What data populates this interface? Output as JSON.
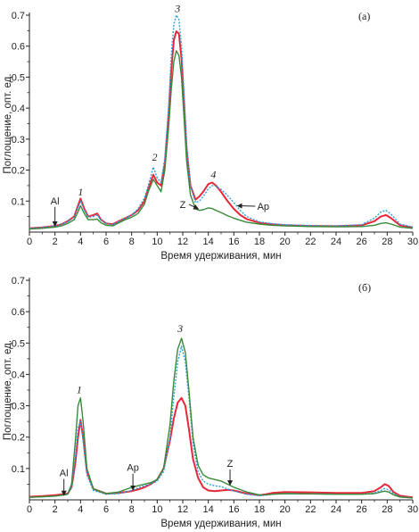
{
  "chart_data": [
    {
      "type": "line",
      "panel_label": "(а)",
      "xlabel": "Время удерживания, мин",
      "ylabel": "Поглощение, опт. ед.",
      "xlim": [
        0,
        30
      ],
      "ylim": [
        0,
        0.7
      ],
      "xticks": [
        "0",
        "2",
        "4",
        "6",
        "8",
        "10",
        "12",
        "14",
        "16",
        "18",
        "20",
        "22",
        "24",
        "26",
        "28",
        "30"
      ],
      "yticks": [
        "0.1",
        "0.2",
        "0.3",
        "0.4",
        "0.5",
        "0.6",
        "0.7"
      ],
      "peak_labels": [
        {
          "text": "1",
          "x": 4.0,
          "y": 0.118
        },
        {
          "text": "2",
          "x": 9.8,
          "y": 0.23
        },
        {
          "text": "3",
          "x": 11.6,
          "y": 0.71
        },
        {
          "text": "4",
          "x": 14.4,
          "y": 0.175
        }
      ],
      "annotations": [
        {
          "text": "Al",
          "x": 2.0,
          "y": 0.02,
          "tx": 2.0,
          "ty": 0.09
        },
        {
          "text": "Z",
          "x": 13.2,
          "y": 0.075,
          "tx": 12.0,
          "ty": 0.078
        },
        {
          "text": "Ap",
          "x": 16.3,
          "y": 0.085,
          "tx": 18.3,
          "ty": 0.072
        }
      ],
      "series": [
        {
          "color": "#e8283a",
          "dash": "",
          "width": 2,
          "x": [
            0,
            1,
            2,
            2.5,
            3,
            3.5,
            3.8,
            4,
            4.3,
            4.6,
            5,
            5.3,
            5.6,
            6,
            6.5,
            7,
            7.5,
            8,
            8.5,
            9,
            9.3,
            9.7,
            10,
            10.3,
            10.6,
            10.9,
            11.1,
            11.3,
            11.5,
            11.7,
            11.9,
            12.1,
            12.3,
            12.6,
            13,
            13.3,
            13.6,
            14,
            14.3,
            14.6,
            15,
            15.5,
            16,
            16.5,
            17,
            18,
            19,
            20,
            22,
            24,
            26,
            27,
            27.5,
            27.9,
            28.3,
            29,
            30
          ],
          "y": [
            0.012,
            0.015,
            0.02,
            0.025,
            0.035,
            0.05,
            0.085,
            0.108,
            0.075,
            0.05,
            0.055,
            0.06,
            0.04,
            0.028,
            0.025,
            0.035,
            0.045,
            0.055,
            0.07,
            0.1,
            0.14,
            0.185,
            0.16,
            0.15,
            0.22,
            0.38,
            0.52,
            0.62,
            0.648,
            0.64,
            0.56,
            0.42,
            0.27,
            0.15,
            0.105,
            0.115,
            0.13,
            0.155,
            0.16,
            0.15,
            0.13,
            0.1,
            0.075,
            0.055,
            0.042,
            0.03,
            0.025,
            0.022,
            0.02,
            0.019,
            0.022,
            0.035,
            0.05,
            0.055,
            0.045,
            0.022,
            0.015
          ]
        },
        {
          "color": "#2a9fe0",
          "dash": "2,1.6",
          "width": 1.4,
          "x": [
            0,
            1,
            2,
            2.5,
            3,
            3.5,
            3.8,
            4,
            4.3,
            4.6,
            5,
            5.3,
            5.6,
            6,
            6.5,
            7,
            7.5,
            8,
            8.5,
            9,
            9.3,
            9.7,
            10,
            10.3,
            10.6,
            10.9,
            11.1,
            11.3,
            11.5,
            11.7,
            11.9,
            12.1,
            12.3,
            12.6,
            13,
            13.3,
            13.6,
            14,
            14.3,
            14.6,
            15,
            15.5,
            16,
            16.5,
            17,
            18,
            19,
            20,
            22,
            24,
            26,
            27,
            27.5,
            27.9,
            28.3,
            29,
            30
          ],
          "y": [
            0.012,
            0.015,
            0.02,
            0.025,
            0.033,
            0.048,
            0.078,
            0.1,
            0.072,
            0.048,
            0.05,
            0.055,
            0.038,
            0.027,
            0.024,
            0.034,
            0.044,
            0.055,
            0.075,
            0.11,
            0.15,
            0.21,
            0.175,
            0.16,
            0.24,
            0.41,
            0.57,
            0.67,
            0.7,
            0.685,
            0.6,
            0.45,
            0.28,
            0.15,
            0.095,
            0.1,
            0.115,
            0.14,
            0.15,
            0.148,
            0.138,
            0.118,
            0.095,
            0.07,
            0.05,
            0.033,
            0.027,
            0.024,
            0.021,
            0.02,
            0.024,
            0.045,
            0.065,
            0.07,
            0.058,
            0.026,
            0.016
          ]
        },
        {
          "color": "#3a8a3a",
          "dash": "",
          "width": 1.4,
          "x": [
            0,
            1,
            2,
            2.5,
            3,
            3.5,
            3.8,
            4,
            4.3,
            4.6,
            5,
            5.3,
            5.6,
            6,
            6.5,
            7,
            7.5,
            8,
            8.5,
            9,
            9.3,
            9.7,
            10,
            10.3,
            10.6,
            10.9,
            11.1,
            11.3,
            11.5,
            11.7,
            11.9,
            12.1,
            12.3,
            12.6,
            13,
            13.3,
            13.6,
            14,
            14.3,
            14.6,
            15,
            15.5,
            16,
            16.5,
            17,
            18,
            19,
            20,
            22,
            24,
            26,
            27,
            27.5,
            27.9,
            28.3,
            29,
            30
          ],
          "y": [
            0.01,
            0.012,
            0.016,
            0.02,
            0.028,
            0.04,
            0.065,
            0.085,
            0.06,
            0.04,
            0.04,
            0.042,
            0.03,
            0.022,
            0.02,
            0.03,
            0.04,
            0.048,
            0.06,
            0.09,
            0.13,
            0.17,
            0.15,
            0.13,
            0.2,
            0.34,
            0.46,
            0.55,
            0.585,
            0.57,
            0.5,
            0.37,
            0.23,
            0.12,
            0.075,
            0.07,
            0.072,
            0.078,
            0.076,
            0.07,
            0.063,
            0.053,
            0.045,
            0.038,
            0.032,
            0.026,
            0.022,
            0.02,
            0.018,
            0.017,
            0.018,
            0.022,
            0.028,
            0.03,
            0.026,
            0.016,
            0.012
          ]
        }
      ]
    },
    {
      "type": "line",
      "panel_label": "(б)",
      "xlabel": "Время удерживания, мин",
      "ylabel": "Поглощение, опт. ед.",
      "xlim": [
        0,
        30
      ],
      "ylim": [
        0,
        0.7
      ],
      "xticks": [
        "0",
        "2",
        "4",
        "6",
        "8",
        "10",
        "12",
        "14",
        "16",
        "18",
        "20",
        "22",
        "24",
        "26",
        "28",
        "30"
      ],
      "yticks": [
        "0.1",
        "0.2",
        "0.3",
        "0.4",
        "0.5",
        "0.6",
        "0.7"
      ],
      "peak_labels": [
        {
          "text": "1",
          "x": 3.9,
          "y": 0.34
        },
        {
          "text": "3",
          "x": 11.8,
          "y": 0.535
        }
      ],
      "annotations": [
        {
          "text": "Al",
          "x": 2.7,
          "y": 0.015,
          "tx": 2.7,
          "ty": 0.075
        },
        {
          "text": "Ap",
          "x": 8.1,
          "y": 0.032,
          "tx": 8.1,
          "ty": 0.092
        },
        {
          "text": "Z",
          "x": 15.7,
          "y": 0.048,
          "tx": 15.7,
          "ty": 0.105
        }
      ],
      "series": [
        {
          "color": "#e8283a",
          "dash": "",
          "width": 2,
          "x": [
            0,
            1,
            2,
            2.6,
            3,
            3.3,
            3.6,
            3.8,
            4,
            4.2,
            4.5,
            5,
            6,
            7,
            8,
            8.5,
            9,
            9.5,
            10,
            10.5,
            11,
            11.3,
            11.6,
            11.9,
            12.2,
            12.5,
            12.8,
            13.2,
            13.6,
            14,
            14.5,
            15,
            15.5,
            16,
            17,
            18,
            18.5,
            19,
            20,
            22,
            24,
            26,
            27,
            27.5,
            27.8,
            28.1,
            28.5,
            29,
            30
          ],
          "y": [
            0.01,
            0.012,
            0.015,
            0.018,
            0.02,
            0.04,
            0.12,
            0.2,
            0.255,
            0.2,
            0.09,
            0.035,
            0.02,
            0.022,
            0.028,
            0.033,
            0.04,
            0.05,
            0.065,
            0.1,
            0.19,
            0.26,
            0.31,
            0.325,
            0.3,
            0.22,
            0.13,
            0.07,
            0.04,
            0.03,
            0.028,
            0.03,
            0.032,
            0.03,
            0.02,
            0.015,
            0.018,
            0.022,
            0.025,
            0.024,
            0.022,
            0.022,
            0.028,
            0.04,
            0.05,
            0.045,
            0.025,
            0.013,
            0.008
          ]
        },
        {
          "color": "#2a9fe0",
          "dash": "2,1.6",
          "width": 1.4,
          "x": [
            0,
            1,
            2,
            2.6,
            3,
            3.3,
            3.6,
            3.8,
            4,
            4.2,
            4.5,
            5,
            6,
            7,
            8,
            8.5,
            9,
            9.5,
            10,
            10.5,
            11,
            11.3,
            11.6,
            11.9,
            12.2,
            12.5,
            12.8,
            13.2,
            13.6,
            14,
            14.5,
            15,
            15.5,
            16,
            17,
            18,
            18.5,
            19,
            20,
            22,
            24,
            26,
            27,
            27.5,
            27.8,
            28.1,
            28.5,
            29,
            30
          ],
          "y": [
            0.008,
            0.01,
            0.012,
            0.015,
            0.018,
            0.04,
            0.14,
            0.23,
            0.25,
            0.19,
            0.08,
            0.03,
            0.018,
            0.02,
            0.03,
            0.038,
            0.045,
            0.05,
            0.06,
            0.09,
            0.2,
            0.33,
            0.44,
            0.49,
            0.44,
            0.32,
            0.18,
            0.09,
            0.06,
            0.05,
            0.045,
            0.042,
            0.035,
            0.028,
            0.018,
            0.013,
            0.015,
            0.018,
            0.02,
            0.019,
            0.018,
            0.018,
            0.022,
            0.03,
            0.036,
            0.032,
            0.02,
            0.01,
            0.006
          ]
        },
        {
          "color": "#3a8a3a",
          "dash": "",
          "width": 1.4,
          "x": [
            0,
            1,
            2,
            2.6,
            3,
            3.3,
            3.6,
            3.8,
            4,
            4.2,
            4.5,
            5,
            6,
            7,
            8,
            8.5,
            9,
            9.5,
            10,
            10.5,
            11,
            11.3,
            11.6,
            11.9,
            12.2,
            12.5,
            12.8,
            13.2,
            13.6,
            14,
            14.5,
            15,
            15.5,
            16,
            17,
            18,
            18.5,
            19,
            20,
            22,
            24,
            26,
            27,
            27.5,
            27.8,
            28.1,
            28.5,
            29,
            30
          ],
          "y": [
            0.008,
            0.01,
            0.012,
            0.015,
            0.018,
            0.05,
            0.19,
            0.3,
            0.325,
            0.25,
            0.1,
            0.035,
            0.02,
            0.025,
            0.04,
            0.045,
            0.05,
            0.055,
            0.065,
            0.1,
            0.24,
            0.38,
            0.48,
            0.515,
            0.47,
            0.34,
            0.2,
            0.11,
            0.08,
            0.07,
            0.065,
            0.06,
            0.05,
            0.04,
            0.025,
            0.016,
            0.016,
            0.018,
            0.02,
            0.019,
            0.018,
            0.018,
            0.02,
            0.025,
            0.028,
            0.025,
            0.016,
            0.009,
            0.006
          ]
        }
      ]
    }
  ]
}
